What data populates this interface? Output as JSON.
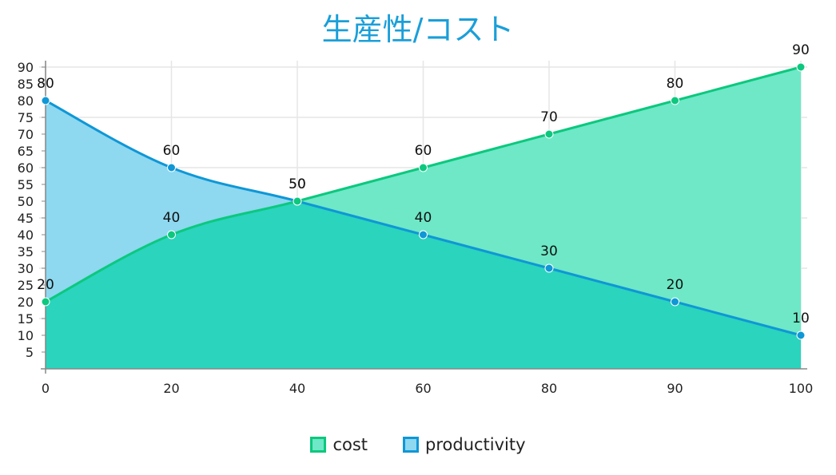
{
  "title": "生産性/コスト",
  "colors": {
    "title": "#1a9fd9",
    "cost_line": "#0cc87e",
    "cost_fill": "#6ee8c6",
    "productivity_line": "#0f97d6",
    "productivity_fill": "#8ed8f0",
    "overlap_fill": "#2ad4bd",
    "grid": "#e6e6e6",
    "axis": "#888888"
  },
  "legend": {
    "items": [
      {
        "label": "cost",
        "key": "cost"
      },
      {
        "label": "productivity",
        "key": "productivity"
      }
    ]
  },
  "chart_data": {
    "type": "area",
    "title": "生産性/コスト",
    "xlabel": "",
    "ylabel": "",
    "categories": [
      "0",
      "20",
      "40",
      "60",
      "80",
      "90",
      "100"
    ],
    "series": [
      {
        "name": "cost",
        "values": [
          20,
          40,
          50,
          60,
          70,
          80,
          90
        ]
      },
      {
        "name": "productivity",
        "values": [
          80,
          60,
          50,
          40,
          30,
          20,
          10
        ]
      }
    ],
    "ylim": [
      0,
      90
    ],
    "y_ticks": [
      5,
      10,
      15,
      20,
      25,
      30,
      35,
      40,
      45,
      50,
      55,
      60,
      65,
      70,
      75,
      80,
      85,
      90
    ],
    "y_gridlines": [
      15,
      30,
      45,
      60,
      75,
      90
    ],
    "grid": true,
    "data_labels": true,
    "legend_position": "bottom"
  }
}
